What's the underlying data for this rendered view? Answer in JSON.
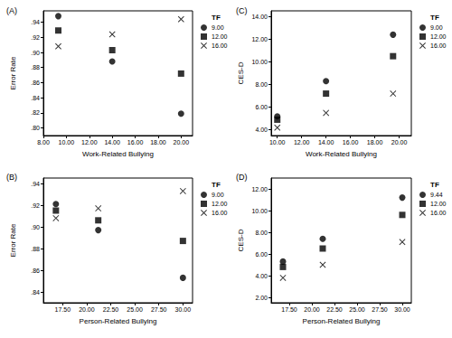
{
  "chart_data": [
    {
      "type": "scatter",
      "title": "(A)",
      "xlabel": "Work-Related Bullying",
      "ylabel": "Error Rate",
      "legend_title": "TF",
      "grid": false,
      "x": [
        9.3,
        14.0,
        20.0
      ],
      "series": [
        {
          "name": "9.00",
          "color": "#000000",
          "marker": "circle",
          "values": [
            0.948,
            0.888,
            0.819
          ]
        },
        {
          "name": "12.00",
          "color": "#000000",
          "marker": "square",
          "values": [
            0.929,
            0.903,
            0.872
          ]
        },
        {
          "name": "16.00",
          "color": "#000000",
          "marker": "x",
          "values": [
            0.908,
            0.924,
            0.944
          ]
        }
      ],
      "xlim": [
        8,
        21
      ],
      "xticks": [
        {
          "value": 8,
          "label": "8.00"
        },
        {
          "value": 10,
          "label": "10.00"
        },
        {
          "value": 12,
          "label": "12.00"
        },
        {
          "value": 14,
          "label": "14.00"
        },
        {
          "value": 16,
          "label": "16.00"
        },
        {
          "value": 18,
          "label": "18.00"
        },
        {
          "value": 20,
          "label": "20.00"
        }
      ],
      "ylim": [
        0.79,
        0.955
      ],
      "yticks": [
        {
          "value": 0.8,
          "label": ".80"
        },
        {
          "value": 0.82,
          "label": ".82"
        },
        {
          "value": 0.84,
          "label": ".84"
        },
        {
          "value": 0.86,
          "label": ".86"
        },
        {
          "value": 0.88,
          "label": ".88"
        },
        {
          "value": 0.9,
          "label": ".90"
        },
        {
          "value": 0.92,
          "label": ".92"
        },
        {
          "value": 0.94,
          "label": ".94"
        }
      ]
    },
    {
      "type": "scatter",
      "title": "(B)",
      "xlabel": "Person-Related Bullying",
      "ylabel": "Error Rate",
      "legend_title": "TF",
      "grid": false,
      "x": [
        16.8,
        21.2,
        30.0
      ],
      "series": [
        {
          "name": "9.00",
          "color": "#000000",
          "marker": "circle",
          "values": [
            0.921,
            0.897,
            0.853
          ]
        },
        {
          "name": "12.00",
          "color": "#000000",
          "marker": "square",
          "values": [
            0.915,
            0.906,
            0.887
          ]
        },
        {
          "name": "16.00",
          "color": "#000000",
          "marker": "x",
          "values": [
            0.908,
            0.917,
            0.933
          ]
        }
      ],
      "xlim": [
        15.5,
        31
      ],
      "xticks": [
        {
          "value": 17.5,
          "label": "17.50"
        },
        {
          "value": 20,
          "label": "20.00"
        },
        {
          "value": 22.5,
          "label": "22.50"
        },
        {
          "value": 25,
          "label": "25.00"
        },
        {
          "value": 27.5,
          "label": "27.50"
        },
        {
          "value": 30,
          "label": "30.00"
        }
      ],
      "ylim": [
        0.83,
        0.945
      ],
      "yticks": [
        {
          "value": 0.84,
          "label": ".84"
        },
        {
          "value": 0.86,
          "label": ".86"
        },
        {
          "value": 0.88,
          "label": ".88"
        },
        {
          "value": 0.9,
          "label": ".90"
        },
        {
          "value": 0.92,
          "label": ".92"
        },
        {
          "value": 0.94,
          "label": ".94"
        }
      ]
    },
    {
      "type": "scatter",
      "title": "(C)",
      "xlabel": "Work-Related Bullying",
      "ylabel": "CES-D",
      "legend_title": "TF",
      "grid": false,
      "x": [
        10.0,
        14.0,
        19.5
      ],
      "series": [
        {
          "name": "9.00",
          "color": "#000000",
          "marker": "circle",
          "values": [
            5.2,
            8.3,
            12.4
          ]
        },
        {
          "name": "12.00",
          "color": "#000000",
          "marker": "square",
          "values": [
            4.9,
            7.2,
            10.5
          ]
        },
        {
          "name": "16.00",
          "color": "#000000",
          "marker": "x",
          "values": [
            4.2,
            5.5,
            7.2
          ]
        }
      ],
      "xlim": [
        9.5,
        21
      ],
      "xticks": [
        {
          "value": 10,
          "label": "10.00"
        },
        {
          "value": 12,
          "label": "12.00"
        },
        {
          "value": 14,
          "label": "14.00"
        },
        {
          "value": 16,
          "label": "16.00"
        },
        {
          "value": 18,
          "label": "18.00"
        },
        {
          "value": 20,
          "label": "20.00"
        }
      ],
      "ylim": [
        3.5,
        14.5
      ],
      "yticks": [
        {
          "value": 4,
          "label": "4.00"
        },
        {
          "value": 6,
          "label": "6.00"
        },
        {
          "value": 8,
          "label": "8.00"
        },
        {
          "value": 10,
          "label": "10.00"
        },
        {
          "value": 12,
          "label": "12.00"
        },
        {
          "value": 14,
          "label": "14.00"
        }
      ]
    },
    {
      "type": "scatter",
      "title": "(D)",
      "xlabel": "Person-Related Bullying",
      "ylabel": "CES-D",
      "legend_title": "TF",
      "grid": false,
      "x": [
        16.8,
        21.2,
        30.0
      ],
      "series": [
        {
          "name": "9.44",
          "color": "#000000",
          "marker": "circle",
          "values": [
            5.3,
            7.4,
            11.2
          ]
        },
        {
          "name": "12.00",
          "color": "#000000",
          "marker": "square",
          "values": [
            4.8,
            6.5,
            9.6
          ]
        },
        {
          "name": "16.00",
          "color": "#000000",
          "marker": "x",
          "values": [
            3.8,
            5.0,
            7.1
          ]
        }
      ],
      "xlim": [
        15.5,
        31
      ],
      "xticks": [
        {
          "value": 17.5,
          "label": "17.50"
        },
        {
          "value": 20,
          "label": "20.00"
        },
        {
          "value": 22.5,
          "label": "22.50"
        },
        {
          "value": 25,
          "label": "25.00"
        },
        {
          "value": 27.5,
          "label": "27.50"
        },
        {
          "value": 30,
          "label": "30.00"
        }
      ],
      "ylim": [
        1.5,
        13
      ],
      "yticks": [
        {
          "value": 2,
          "label": "2.00"
        },
        {
          "value": 4,
          "label": "4.00"
        },
        {
          "value": 6,
          "label": "6.00"
        },
        {
          "value": 8,
          "label": "8.00"
        },
        {
          "value": 10,
          "label": "10.00"
        },
        {
          "value": 12,
          "label": "12.00"
        }
      ]
    }
  ]
}
